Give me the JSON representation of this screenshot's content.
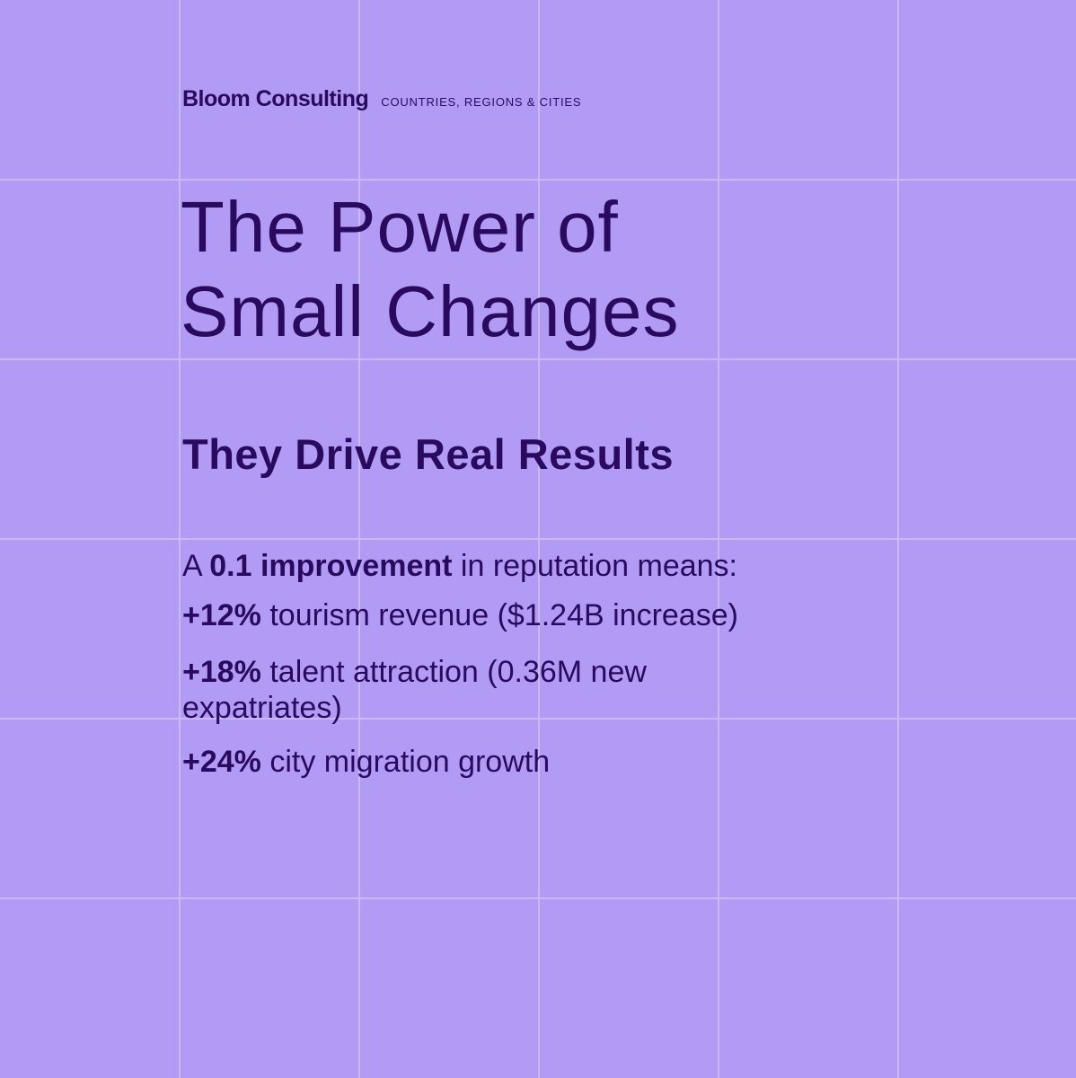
{
  "brand": {
    "name": "Bloom Consulting",
    "tagline": "COUNTRIES, REGIONS & CITIES"
  },
  "title": {
    "line1": "The Power of",
    "line2": "Small Changes"
  },
  "subtitle": "They Drive Real Results",
  "intro": {
    "prefix": "A ",
    "highlight": "0.1 improvement",
    "suffix": " in reputation means:"
  },
  "results": [
    {
      "value": "+12%",
      "text": " tourism revenue ($1.24B increase)"
    },
    {
      "value": "+18%",
      "text": " talent attraction (0.36M new expatriates)"
    },
    {
      "value": "+24%",
      "text": " city migration growth"
    }
  ],
  "colors": {
    "background": "#b29bf5",
    "text": "#2a0a5e",
    "grid_lines": "#c8b9f7"
  }
}
